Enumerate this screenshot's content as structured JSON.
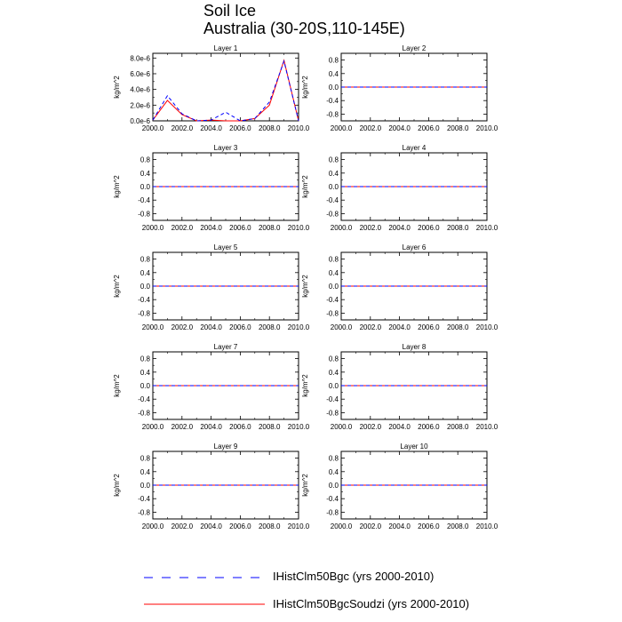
{
  "title": "Soil Ice",
  "subtitle": "Australia (30-20S,110-145E)",
  "colors": {
    "series1": "#0000ff",
    "series1_red": "#ff0000",
    "series2": "#ff0000"
  },
  "legend": [
    {
      "label": "IHistClm50Bgc (yrs 2000-2010)",
      "style": "dashed",
      "color": "#0000ff"
    },
    {
      "label": "IHistClm50BgcSoudzi (yrs 2000-2010)",
      "style": "solid",
      "color": "#ff0000"
    }
  ],
  "chart_data": [
    {
      "type": "line",
      "title": "Layer 1",
      "ylabel": "kg/m^2",
      "xlim": [
        2000,
        2010
      ],
      "ylim": [
        0,
        8.6e-06
      ],
      "x_ticks": [
        "2000.0",
        "2002.0",
        "2004.0",
        "2006.0",
        "2008.0",
        "2010.0"
      ],
      "y_ticks": [
        "0.0e-6",
        "2.0e-6",
        "4.0e-6",
        "6.0e-6",
        "8.0e-6"
      ],
      "y_tick_values": [
        0,
        2e-06,
        4e-06,
        6e-06,
        8e-06
      ],
      "x": [
        2000,
        2001,
        2002,
        2003,
        2004,
        2005,
        2006,
        2007,
        2008,
        2009,
        2010
      ],
      "series": [
        {
          "name": "IHistClm50Bgc (yrs 2000-2010)",
          "style": "dashed",
          "values": [
            1e-07,
            3.2e-06,
            9e-07,
            0.0,
            1e-07,
            1.1e-06,
            0.0,
            3e-07,
            2.4e-06,
            7.6e-06,
            0.0
          ]
        },
        {
          "name": "IHistClm50BgcSoudzi (yrs 2000-2010)",
          "style": "solid",
          "values": [
            1e-07,
            2.6e-06,
            8e-07,
            0.0,
            1e-07,
            0.0,
            0.0,
            3e-07,
            2e-06,
            7.7e-06,
            0.0
          ]
        }
      ]
    },
    {
      "type": "line",
      "title": "Layer 2",
      "ylabel": "kg/m^2",
      "xlim": [
        2000,
        2010
      ],
      "ylim": [
        -1,
        1
      ],
      "x_ticks": [
        "2000.0",
        "2002.0",
        "2004.0",
        "2006.0",
        "2008.0",
        "2010.0"
      ],
      "y_ticks": [
        "0.8",
        "0.4",
        "0.0",
        "-0.4",
        "-0.8"
      ],
      "y_tick_values": [
        0.8,
        0.4,
        0,
        -0.4,
        -0.8
      ],
      "x": [
        2000,
        2010
      ],
      "series": [
        {
          "name": "IHistClm50Bgc (yrs 2000-2010)",
          "style": "dashed",
          "values": [
            0,
            0
          ]
        },
        {
          "name": "IHistClm50BgcSoudzi (yrs 2000-2010)",
          "style": "solid",
          "values": [
            0,
            0
          ]
        }
      ]
    },
    {
      "type": "line",
      "title": "Layer 3",
      "ylabel": "kg/m^2",
      "xlim": [
        2000,
        2010
      ],
      "ylim": [
        -1,
        1
      ],
      "x_ticks": [
        "2000.0",
        "2002.0",
        "2004.0",
        "2006.0",
        "2008.0",
        "2010.0"
      ],
      "y_ticks": [
        "0.8",
        "0.4",
        "0.0",
        "-0.4",
        "-0.8"
      ],
      "y_tick_values": [
        0.8,
        0.4,
        0,
        -0.4,
        -0.8
      ],
      "x": [
        2000,
        2010
      ],
      "series": [
        {
          "name": "IHistClm50Bgc (yrs 2000-2010)",
          "style": "dashed",
          "values": [
            0,
            0
          ]
        },
        {
          "name": "IHistClm50BgcSoudzi (yrs 2000-2010)",
          "style": "solid",
          "values": [
            0,
            0
          ]
        }
      ]
    },
    {
      "type": "line",
      "title": "Layer 4",
      "ylabel": "kg/m^2",
      "xlim": [
        2000,
        2010
      ],
      "ylim": [
        -1,
        1
      ],
      "x_ticks": [
        "2000.0",
        "2002.0",
        "2004.0",
        "2006.0",
        "2008.0",
        "2010.0"
      ],
      "y_ticks": [
        "0.8",
        "0.4",
        "0.0",
        "-0.4",
        "-0.8"
      ],
      "y_tick_values": [
        0.8,
        0.4,
        0,
        -0.4,
        -0.8
      ],
      "x": [
        2000,
        2010
      ],
      "series": [
        {
          "name": "IHistClm50Bgc (yrs 2000-2010)",
          "style": "dashed",
          "values": [
            0,
            0
          ]
        },
        {
          "name": "IHistClm50BgcSoudzi (yrs 2000-2010)",
          "style": "solid",
          "values": [
            0,
            0
          ]
        }
      ]
    },
    {
      "type": "line",
      "title": "Layer 5",
      "ylabel": "kg/m^2",
      "xlim": [
        2000,
        2010
      ],
      "ylim": [
        -1,
        1
      ],
      "x_ticks": [
        "2000.0",
        "2002.0",
        "2004.0",
        "2006.0",
        "2008.0",
        "2010.0"
      ],
      "y_ticks": [
        "0.8",
        "0.4",
        "0.0",
        "-0.4",
        "-0.8"
      ],
      "y_tick_values": [
        0.8,
        0.4,
        0,
        -0.4,
        -0.8
      ],
      "x": [
        2000,
        2010
      ],
      "series": [
        {
          "name": "IHistClm50Bgc (yrs 2000-2010)",
          "style": "dashed",
          "values": [
            0,
            0
          ]
        },
        {
          "name": "IHistClm50BgcSoudzi (yrs 2000-2010)",
          "style": "solid",
          "values": [
            0,
            0
          ]
        }
      ]
    },
    {
      "type": "line",
      "title": "Layer 6",
      "ylabel": "kg/m^2",
      "xlim": [
        2000,
        2010
      ],
      "ylim": [
        -1,
        1
      ],
      "x_ticks": [
        "2000.0",
        "2002.0",
        "2004.0",
        "2006.0",
        "2008.0",
        "2010.0"
      ],
      "y_ticks": [
        "0.8",
        "0.4",
        "0.0",
        "-0.4",
        "-0.8"
      ],
      "y_tick_values": [
        0.8,
        0.4,
        0,
        -0.4,
        -0.8
      ],
      "x": [
        2000,
        2010
      ],
      "series": [
        {
          "name": "IHistClm50Bgc (yrs 2000-2010)",
          "style": "dashed",
          "values": [
            0,
            0
          ]
        },
        {
          "name": "IHistClm50BgcSoudzi (yrs 2000-2010)",
          "style": "solid",
          "values": [
            0,
            0
          ]
        }
      ]
    },
    {
      "type": "line",
      "title": "Layer 7",
      "ylabel": "kg/m^2",
      "xlim": [
        2000,
        2010
      ],
      "ylim": [
        -1,
        1
      ],
      "x_ticks": [
        "2000.0",
        "2002.0",
        "2004.0",
        "2006.0",
        "2008.0",
        "2010.0"
      ],
      "y_ticks": [
        "0.8",
        "0.4",
        "0.0",
        "-0.4",
        "-0.8"
      ],
      "y_tick_values": [
        0.8,
        0.4,
        0,
        -0.4,
        -0.8
      ],
      "x": [
        2000,
        2010
      ],
      "series": [
        {
          "name": "IHistClm50Bgc (yrs 2000-2010)",
          "style": "dashed",
          "values": [
            0,
            0
          ]
        },
        {
          "name": "IHistClm50BgcSoudzi (yrs 2000-2010)",
          "style": "solid",
          "values": [
            0,
            0
          ]
        }
      ]
    },
    {
      "type": "line",
      "title": "Layer 8",
      "ylabel": "kg/m^2",
      "xlim": [
        2000,
        2010
      ],
      "ylim": [
        -1,
        1
      ],
      "x_ticks": [
        "2000.0",
        "2002.0",
        "2004.0",
        "2006.0",
        "2008.0",
        "2010.0"
      ],
      "y_ticks": [
        "0.8",
        "0.4",
        "0.0",
        "-0.4",
        "-0.8"
      ],
      "y_tick_values": [
        0.8,
        0.4,
        0,
        -0.4,
        -0.8
      ],
      "x": [
        2000,
        2010
      ],
      "series": [
        {
          "name": "IHistClm50Bgc (yrs 2000-2010)",
          "style": "dashed",
          "values": [
            0,
            0
          ]
        },
        {
          "name": "IHistClm50BgcSoudzi (yrs 2000-2010)",
          "style": "solid",
          "values": [
            0,
            0
          ]
        }
      ]
    },
    {
      "type": "line",
      "title": "Layer 9",
      "ylabel": "kg/m^2",
      "xlim": [
        2000,
        2010
      ],
      "ylim": [
        -1,
        1
      ],
      "x_ticks": [
        "2000.0",
        "2002.0",
        "2004.0",
        "2006.0",
        "2008.0",
        "2010.0"
      ],
      "y_ticks": [
        "0.8",
        "0.4",
        "0.0",
        "-0.4",
        "-0.8"
      ],
      "y_tick_values": [
        0.8,
        0.4,
        0,
        -0.4,
        -0.8
      ],
      "x": [
        2000,
        2010
      ],
      "series": [
        {
          "name": "IHistClm50Bgc (yrs 2000-2010)",
          "style": "dashed",
          "values": [
            0,
            0
          ]
        },
        {
          "name": "IHistClm50BgcSoudzi (yrs 2000-2010)",
          "style": "solid",
          "values": [
            0,
            0
          ]
        }
      ]
    },
    {
      "type": "line",
      "title": "Layer 10",
      "ylabel": "kg/m^2",
      "xlim": [
        2000,
        2010
      ],
      "ylim": [
        -1,
        1
      ],
      "x_ticks": [
        "2000.0",
        "2002.0",
        "2004.0",
        "2006.0",
        "2008.0",
        "2010.0"
      ],
      "y_ticks": [
        "0.8",
        "0.4",
        "0.0",
        "-0.4",
        "-0.8"
      ],
      "y_tick_values": [
        0.8,
        0.4,
        0,
        -0.4,
        -0.8
      ],
      "x": [
        2000,
        2010
      ],
      "series": [
        {
          "name": "IHistClm50Bgc (yrs 2000-2010)",
          "style": "dashed",
          "values": [
            0,
            0
          ]
        },
        {
          "name": "IHistClm50BgcSoudzi (yrs 2000-2010)",
          "style": "solid",
          "values": [
            0,
            0
          ]
        }
      ]
    }
  ]
}
